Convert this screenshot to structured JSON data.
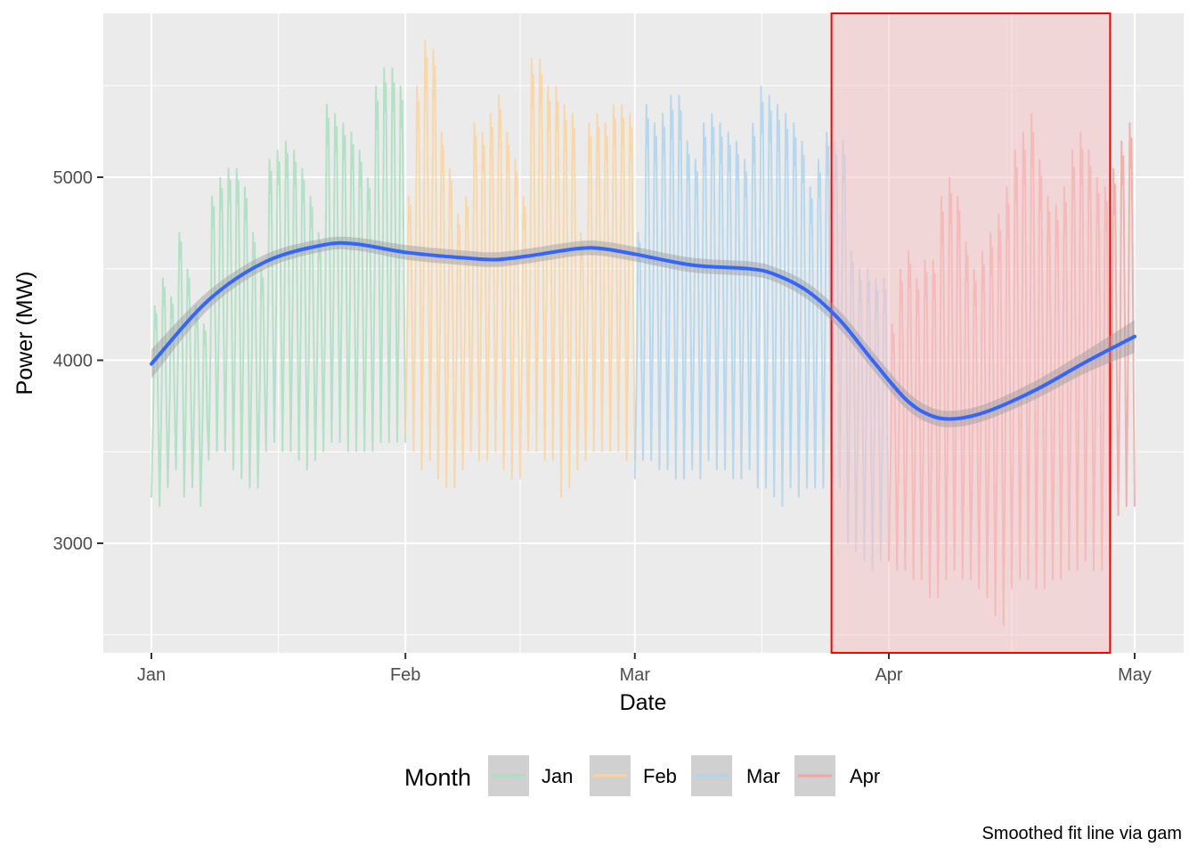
{
  "chart_data": {
    "type": "line",
    "title": "",
    "xlabel": "Date",
    "ylabel": "Power (MW)",
    "caption": "Smoothed fit line via gam",
    "xlim": [
      "2023-01-01",
      "2023-05-01"
    ],
    "ylim": [
      2400,
      5900
    ],
    "x_ticks": [
      {
        "date": "2023-01-01",
        "label": "Jan"
      },
      {
        "date": "2023-02-01",
        "label": "Feb"
      },
      {
        "date": "2023-03-01",
        "label": "Mar"
      },
      {
        "date": "2023-04-01",
        "label": "Apr"
      },
      {
        "date": "2023-05-01",
        "label": "May"
      }
    ],
    "y_ticks": [
      {
        "value": 3000,
        "label": "3000"
      },
      {
        "value": 4000,
        "label": "4000"
      },
      {
        "value": 5000,
        "label": "5000"
      }
    ],
    "grid": true,
    "panel_background": "#ebebeb",
    "legend": {
      "title": "Month",
      "position": "bottom",
      "entries": [
        {
          "label": "Jan",
          "color": "#a8dfbf"
        },
        {
          "label": "Feb",
          "color": "#fdd39a"
        },
        {
          "label": "Mar",
          "color": "#abd5ef"
        },
        {
          "label": "Apr",
          "color": "#f5a4a0"
        }
      ]
    },
    "series": [
      {
        "month": "Jan",
        "start": "2023-01-01",
        "end": "2023-02-01",
        "color": "#a8dfbf",
        "daily_peak": [
          4300,
          4450,
          4350,
          4700,
          4500,
          4300,
          4200,
          4900,
          5000,
          5050,
          5050,
          4950,
          4700,
          4500,
          5100,
          5150,
          5200,
          5150,
          5050,
          4900,
          4700,
          5400,
          5350,
          5300,
          5250,
          5150,
          5000,
          5500,
          5600,
          5600,
          5500
        ],
        "daily_trough": [
          3250,
          3200,
          3300,
          3400,
          3250,
          3300,
          3200,
          3450,
          3500,
          3500,
          3400,
          3350,
          3300,
          3300,
          3500,
          3550,
          3500,
          3500,
          3450,
          3400,
          3450,
          3500,
          3550,
          3550,
          3500,
          3500,
          3500,
          3500,
          3550,
          3550,
          3550
        ]
      },
      {
        "month": "Feb",
        "start": "2023-02-01",
        "end": "2023-03-01",
        "color": "#fdd39a",
        "daily_peak": [
          4900,
          5500,
          5750,
          5700,
          5250,
          5050,
          4800,
          4900,
          5300,
          5250,
          5350,
          5450,
          5250,
          5100,
          4900,
          5650,
          5650,
          5500,
          5500,
          5400,
          5350,
          4700,
          5300,
          5350,
          5300,
          5400,
          5400,
          5350
        ],
        "daily_trough": [
          3600,
          3500,
          3400,
          3450,
          3350,
          3300,
          3300,
          3400,
          3500,
          3450,
          3450,
          3500,
          3400,
          3350,
          3350,
          3500,
          3500,
          3450,
          3450,
          3250,
          3300,
          3400,
          3450,
          3500,
          3500,
          3500,
          3500,
          3450
        ]
      },
      {
        "month": "Mar",
        "start": "2023-03-01",
        "end": "2023-04-01",
        "color": "#abd5ef",
        "daily_peak": [
          4700,
          5400,
          5300,
          5350,
          5450,
          5450,
          5200,
          5100,
          5300,
          5350,
          5300,
          5250,
          5200,
          5100,
          5300,
          5500,
          5450,
          5400,
          5350,
          5300,
          5200,
          4950,
          5100,
          5250,
          5200,
          5200,
          4600,
          4500,
          4500,
          4450,
          4450
        ],
        "daily_trough": [
          3350,
          3450,
          3450,
          3400,
          3400,
          3350,
          3350,
          3400,
          3350,
          3450,
          3400,
          3400,
          3350,
          3350,
          3400,
          3300,
          3300,
          3250,
          3200,
          3300,
          3250,
          3300,
          3300,
          3300,
          3300,
          3300,
          3000,
          2950,
          2900,
          2850,
          2900
        ]
      },
      {
        "month": "Apr",
        "start": "2023-04-01",
        "end": "2023-05-01",
        "color": "#f5a4a0",
        "daily_peak": [
          4200,
          4500,
          4600,
          4450,
          4550,
          4550,
          4900,
          5000,
          4900,
          4650,
          4500,
          4600,
          4700,
          4800,
          4950,
          5150,
          5250,
          5350,
          5100,
          4900,
          4850,
          4950,
          5150,
          5250,
          5150,
          5000,
          4950,
          5050,
          5200,
          5300,
          5500
        ],
        "daily_trough": [
          2900,
          2850,
          2850,
          2800,
          2800,
          2700,
          2700,
          2800,
          2850,
          2800,
          2800,
          2750,
          2700,
          2600,
          2550,
          2750,
          2800,
          2800,
          2750,
          2750,
          2800,
          2800,
          2850,
          2850,
          2900,
          2850,
          2850,
          2900,
          3150,
          3200,
          3300
        ]
      }
    ],
    "smooth": {
      "method": "gam",
      "color": "#3366ff",
      "band_color": "#999999",
      "x": [
        "2023-01-01",
        "2023-01-08",
        "2023-01-15",
        "2023-01-22",
        "2023-01-26",
        "2023-02-01",
        "2023-02-08",
        "2023-02-12",
        "2023-02-16",
        "2023-02-22",
        "2023-02-25",
        "2023-03-01",
        "2023-03-08",
        "2023-03-15",
        "2023-03-18",
        "2023-03-22",
        "2023-03-26",
        "2023-03-30",
        "2023-04-03",
        "2023-04-06",
        "2023-04-09",
        "2023-04-13",
        "2023-04-19",
        "2023-04-25",
        "2023-05-01"
      ],
      "y": [
        3980,
        4330,
        4540,
        4630,
        4635,
        4590,
        4560,
        4550,
        4570,
        4610,
        4610,
        4580,
        4520,
        4500,
        4470,
        4380,
        4220,
        4000,
        3790,
        3700,
        3680,
        3720,
        3840,
        3990,
        4130
      ],
      "band_halfwidth": [
        80,
        50,
        40,
        35,
        35,
        40,
        40,
        40,
        40,
        40,
        40,
        40,
        40,
        40,
        40,
        45,
        50,
        50,
        50,
        45,
        45,
        45,
        50,
        60,
        90
      ]
    },
    "highlight": {
      "x_start": "2023-03-25",
      "x_end": "2023-04-28",
      "y_start": 2400,
      "y_end": 5900,
      "fill": "#f5c5c8",
      "stroke": "#ff0000"
    }
  }
}
